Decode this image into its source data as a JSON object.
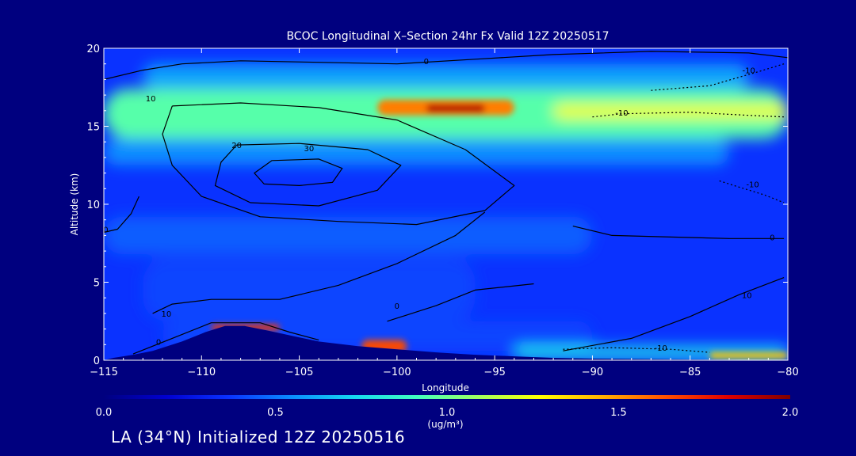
{
  "chart_data": {
    "type": "heatmap",
    "title": "BCOC Longitudinal X–Section 24hr  Fx Valid 12Z 20250517",
    "xlabel": "Longitude",
    "ylabel": "Altitude (km)",
    "xlim": [
      -115,
      -80
    ],
    "ylim": [
      0,
      20
    ],
    "x_ticks": [
      -115,
      -110,
      -105,
      -100,
      -95,
      -90,
      -85,
      -80
    ],
    "x_tick_labels": [
      "−115",
      "−110",
      "−105",
      "−100",
      "−95",
      "−90",
      "−85",
      "−80"
    ],
    "y_ticks": [
      0,
      5,
      10,
      15,
      20
    ],
    "y_tick_labels": [
      "0",
      "5",
      "10",
      "15",
      "20"
    ],
    "colorbar": {
      "min": 0.0,
      "max": 2.0,
      "ticks": [
        0.0,
        0.5,
        1.0,
        1.5,
        2.0
      ],
      "tick_labels": [
        "0.0",
        "0.5",
        "1.0",
        "1.5",
        "2.0"
      ],
      "unit_label": "(ug/m³)",
      "colors": [
        "#00007f",
        "#0000d0",
        "#0a32ff",
        "#0a8cff",
        "#15d8f0",
        "#40ffc0",
        "#a0ff60",
        "#ffff00",
        "#ffb000",
        "#ff5000",
        "#dd0000",
        "#7f0000"
      ]
    },
    "terrain_profile": {
      "lon": [
        -115,
        -114.5,
        -113.5,
        -112.5,
        -111,
        -109.8,
        -108.8,
        -107.8,
        -106.6,
        -105.5,
        -104,
        -102,
        -100,
        -98,
        -96,
        -94,
        -92,
        -90,
        -85,
        -80
      ],
      "alt": [
        0,
        0.15,
        0.35,
        0.6,
        1.2,
        1.8,
        2.2,
        2.2,
        1.9,
        1.6,
        1.2,
        0.9,
        0.7,
        0.5,
        0.35,
        0.25,
        0.15,
        0.1,
        0.05,
        0
      ]
    },
    "concentration_bands": [
      {
        "lon": [
          -115,
          -80
        ],
        "alt": [
          14.2,
          17.4
        ],
        "value": 0.95
      },
      {
        "lon": [
          -101,
          -94
        ],
        "alt": [
          15.7,
          16.7
        ],
        "value": 1.55
      },
      {
        "lon": [
          -98.5,
          -95.5
        ],
        "alt": [
          15.9,
          16.4
        ],
        "value": 1.9
      },
      {
        "lon": [
          -92,
          -80
        ],
        "alt": [
          15.5,
          16.4
        ],
        "value": 1.25
      },
      {
        "lon": [
          -113,
          -82
        ],
        "alt": [
          17.4,
          19.0
        ],
        "value": 0.6
      },
      {
        "lon": [
          -115,
          -83
        ],
        "alt": [
          12.5,
          14.2
        ],
        "value": 0.55
      },
      {
        "lon": [
          -115,
          -90
        ],
        "alt": [
          6.8,
          9.2
        ],
        "value": 0.45
      },
      {
        "lon": [
          -113,
          -96
        ],
        "alt": [
          2.5,
          6.5
        ],
        "value": 0.4
      },
      {
        "lon": [
          -112,
          -90
        ],
        "alt": [
          0.6,
          2.5
        ],
        "value": 0.4
      },
      {
        "lon": [
          -94,
          -80
        ],
        "alt": [
          0.1,
          0.9
        ],
        "value": 0.75
      },
      {
        "lon": [
          -109.5,
          -106
        ],
        "alt": [
          1.9,
          2.3
        ],
        "value": 1.7
      },
      {
        "lon": [
          -101.8,
          -99.5
        ],
        "alt": [
          0.5,
          1.3
        ],
        "value": 1.65
      },
      {
        "lon": [
          -84,
          -80
        ],
        "alt": [
          0.1,
          0.5
        ],
        "value": 1.4
      }
    ],
    "contours": [
      {
        "label": "30",
        "level": 30,
        "dash": false,
        "lon": [
          -106.4,
          -104,
          -102.8,
          -103.3,
          -105,
          -106.8,
          -107.3,
          -106.4
        ],
        "alt": [
          12.8,
          12.9,
          12.3,
          11.4,
          11.2,
          11.3,
          12.0,
          12.8
        ],
        "label_at": [
          -104.5,
          13.6
        ]
      },
      {
        "label": "20",
        "level": 20,
        "dash": false,
        "lon": [
          -108.2,
          -105,
          -101.5,
          -99.8,
          -101,
          -104,
          -107.5,
          -109.3,
          -109,
          -108.2
        ],
        "alt": [
          13.8,
          13.9,
          13.5,
          12.5,
          10.9,
          9.9,
          10.1,
          11.2,
          12.7,
          13.8
        ],
        "label_at": [
          -108.2,
          13.8
        ]
      },
      {
        "label": "10",
        "level": 10,
        "dash": false,
        "lon": [
          -111.5,
          -108,
          -104,
          -100,
          -96.5,
          -94,
          -95.5,
          -99,
          -103,
          -107,
          -110,
          -111.5,
          -112,
          -111.5
        ],
        "alt": [
          16.3,
          16.5,
          16.2,
          15.4,
          13.5,
          11.2,
          9.6,
          8.7,
          8.9,
          9.2,
          10.5,
          12.5,
          14.5,
          16.3
        ],
        "label_at": [
          -112.6,
          16.8
        ]
      },
      {
        "label": "10",
        "level": 10,
        "dash": false,
        "lon": [
          -112.5,
          -111.5,
          -109.5,
          -106,
          -103,
          -100,
          -97,
          -95.5
        ],
        "alt": [
          3.0,
          3.6,
          3.9,
          3.9,
          4.8,
          6.2,
          8.0,
          9.5
        ],
        "label_at": [
          -111.8,
          3.0
        ]
      },
      {
        "label": "10",
        "level": 10,
        "dash": false,
        "lon": [
          -91.5,
          -88,
          -85,
          -82.5,
          -80.2
        ],
        "alt": [
          0.6,
          1.4,
          2.8,
          4.2,
          5.3
        ],
        "label_at": [
          -82.1,
          4.2
        ]
      },
      {
        "label": "0",
        "level": 0,
        "dash": false,
        "lon": [
          -113.5,
          -111.5,
          -109.5,
          -107,
          -105.5,
          -104
        ],
        "alt": [
          0.4,
          1.4,
          2.4,
          2.4,
          1.8,
          1.3
        ],
        "label_at": [
          -112.2,
          1.2
        ]
      },
      {
        "label": "0",
        "level": 0,
        "dash": false,
        "lon": [
          -115,
          -113,
          -111,
          -108,
          -104,
          -100,
          -96,
          -92,
          -87,
          -82,
          -80
        ],
        "alt": [
          18.0,
          18.6,
          19.0,
          19.2,
          19.1,
          19.0,
          19.3,
          19.6,
          19.8,
          19.7,
          19.4
        ],
        "label_at": [
          -98.5,
          19.2
        ]
      },
      {
        "label": "0",
        "level": 0,
        "dash": false,
        "lon": [
          -91,
          -89,
          -86,
          -83,
          -80.2
        ],
        "alt": [
          8.6,
          8.0,
          7.9,
          7.8,
          7.8
        ],
        "label_at": [
          -80.8,
          7.9
        ]
      },
      {
        "label": "0",
        "level": 0,
        "dash": false,
        "lon": [
          -100.5,
          -98,
          -96,
          -93
        ],
        "alt": [
          2.5,
          3.5,
          4.5,
          4.9
        ],
        "label_at": [
          -100.0,
          3.5
        ]
      },
      {
        "label": "0",
        "level": 0,
        "dash": false,
        "lon": [
          -115,
          -114.3,
          -113.6,
          -113.2
        ],
        "alt": [
          8.2,
          8.4,
          9.4,
          10.5
        ],
        "label_at": [
          -114.9,
          8.4
        ]
      },
      {
        "label": "-10",
        "level": -10,
        "dash": true,
        "lon": [
          -90,
          -88.5,
          -85,
          -82,
          -80.2
        ],
        "alt": [
          15.6,
          15.8,
          15.9,
          15.7,
          15.6
        ],
        "label_at": [
          -88.5,
          15.9
        ]
      },
      {
        "label": "-10",
        "level": -10,
        "dash": true,
        "lon": [
          -87,
          -84,
          -81.5,
          -80.2
        ],
        "alt": [
          17.3,
          17.6,
          18.5,
          19.0
        ],
        "label_at": [
          -82.0,
          18.6
        ]
      },
      {
        "label": "-10",
        "level": -10,
        "dash": true,
        "lon": [
          -83.5,
          -82.5,
          -81.2,
          -80.2
        ],
        "alt": [
          11.5,
          11.1,
          10.6,
          10.1
        ],
        "label_at": [
          -81.8,
          11.3
        ]
      },
      {
        "label": "-10",
        "level": -10,
        "dash": true,
        "lon": [
          -91.5,
          -89,
          -86,
          -84
        ],
        "alt": [
          0.7,
          0.8,
          0.7,
          0.5
        ],
        "label_at": [
          -86.5,
          0.8
        ]
      }
    ]
  },
  "footer": {
    "colorbar_unit_line1": "1.0",
    "initialized_text": "LA (34°N) Initialized 12Z 20250516"
  }
}
